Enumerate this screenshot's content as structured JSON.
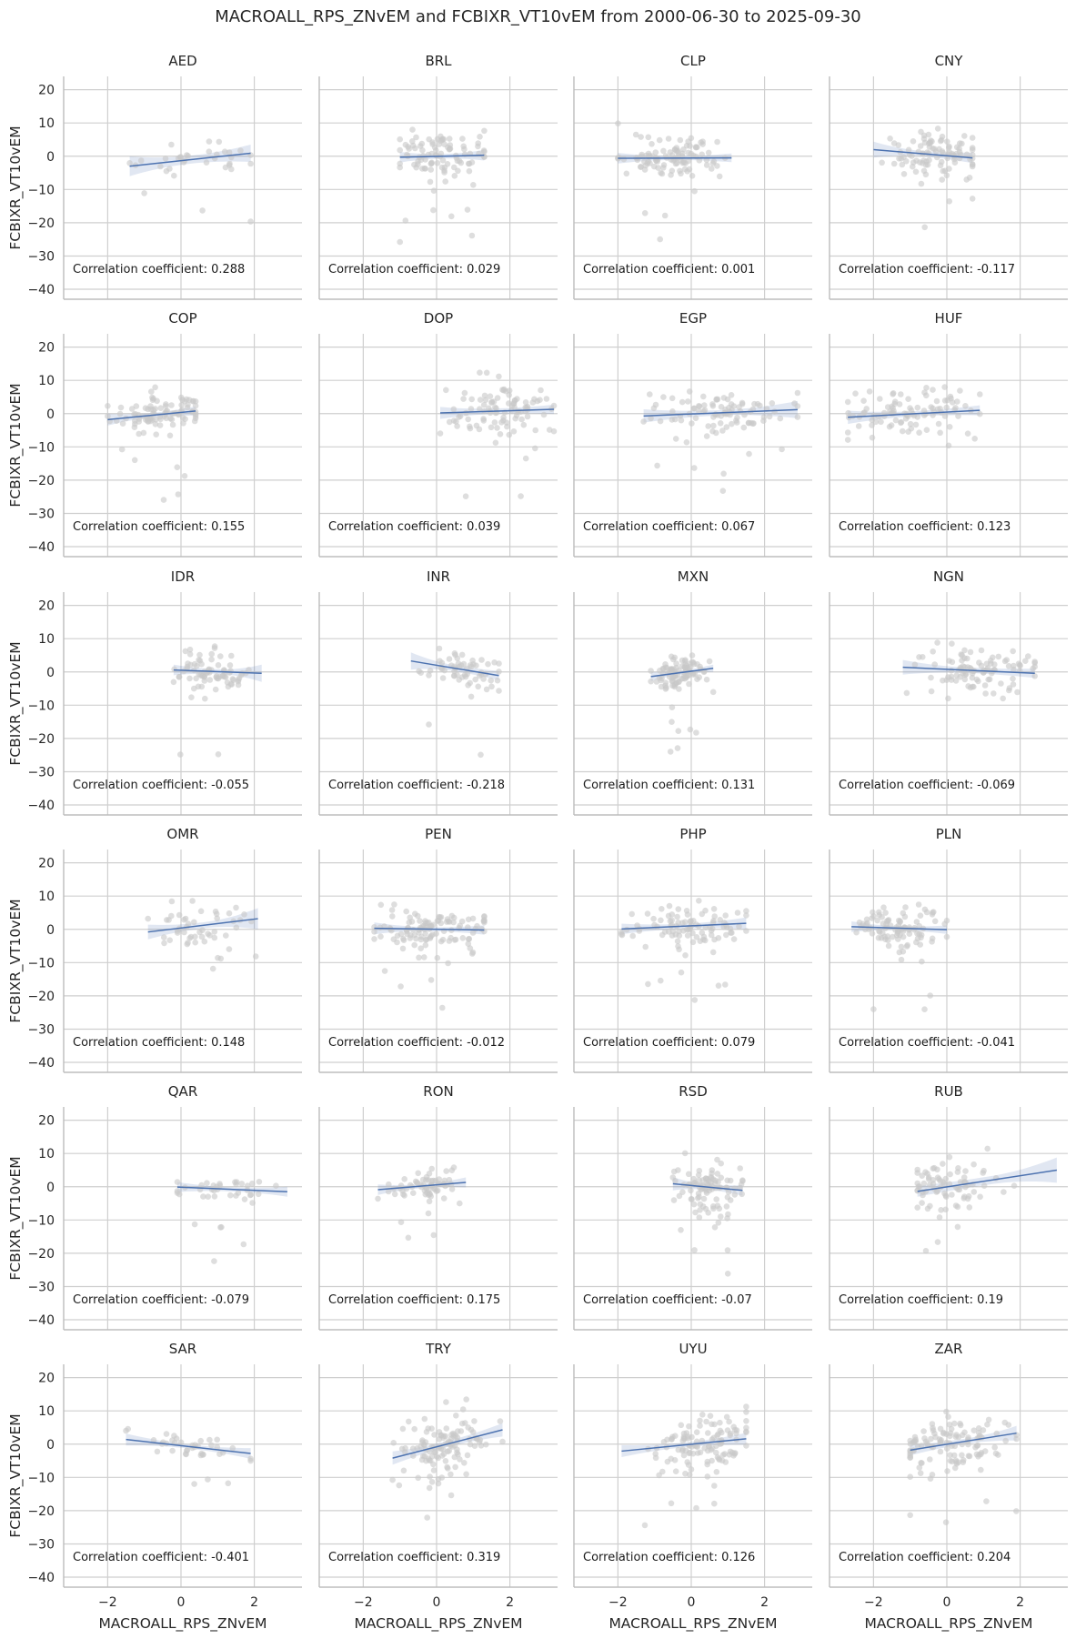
{
  "chart_data": {
    "type": "scatter",
    "title": "MACROALL_RPS_ZNvEM and FCBIXR_VT10vEM from 2000-06-30 to 2025-09-30",
    "xlabel": "MACROALL_RPS_ZNvEM",
    "ylabel": "FCBIXR_VT10vEM",
    "xlim": [
      -3.2,
      3.3
    ],
    "ylim": [
      -43,
      24
    ],
    "xticks": [
      "−2",
      "0",
      "2"
    ],
    "xtick_values": [
      -2,
      0,
      2
    ],
    "yticks": [
      "20",
      "10",
      "0",
      "−10",
      "−20",
      "−30",
      "−40"
    ],
    "ytick_values": [
      20,
      10,
      0,
      -10,
      -20,
      -30,
      -40
    ],
    "grid": true,
    "annotation_prefix": "Correlation coefficient:",
    "scatter_color": "#c8c8c8",
    "line_color": "#4c72b0",
    "panels": [
      {
        "name": "AED",
        "corr": "0.288",
        "x_range": [
          -1.4,
          1.9
        ],
        "line_y": [
          -3.0,
          0.9
        ],
        "ci": [
          3.0,
          1.2,
          2.6
        ],
        "cluster": {
          "x_center": 0.3,
          "x_sd": 0.9,
          "y_sd": 3.5,
          "n": 35
        }
      },
      {
        "name": "BRL",
        "corr": "0.029",
        "x_range": [
          -1.0,
          1.3
        ],
        "line_y": [
          -0.3,
          0.3
        ],
        "ci": [
          1.6,
          0.7,
          1.6
        ],
        "cluster": {
          "x_center": 0.1,
          "x_sd": 0.6,
          "y_sd": 4.8,
          "n": 100
        }
      },
      {
        "name": "CLP",
        "corr": "0.001",
        "x_range": [
          -2.0,
          1.1
        ],
        "line_y": [
          -0.6,
          -0.5
        ],
        "ci": [
          1.6,
          0.6,
          1.3
        ],
        "cluster": {
          "x_center": -0.5,
          "x_sd": 0.8,
          "y_sd": 3.8,
          "n": 110
        }
      },
      {
        "name": "CNY",
        "corr": "-0.117",
        "x_range": [
          -2.0,
          0.7
        ],
        "line_y": [
          2.0,
          -0.5
        ],
        "ci": [
          2.4,
          0.8,
          1.6
        ],
        "cluster": {
          "x_center": -0.2,
          "x_sd": 0.7,
          "y_sd": 4.6,
          "n": 100
        }
      },
      {
        "name": "COP",
        "corr": "0.155",
        "x_range": [
          -2.0,
          0.4
        ],
        "line_y": [
          -1.8,
          0.8
        ],
        "ci": [
          1.8,
          0.7,
          1.4
        ],
        "cluster": {
          "x_center": -0.6,
          "x_sd": 0.6,
          "y_sd": 4.0,
          "n": 100
        }
      },
      {
        "name": "DOP",
        "corr": "0.039",
        "x_range": [
          0.1,
          3.2
        ],
        "line_y": [
          0.2,
          1.3
        ],
        "ci": [
          1.8,
          0.8,
          1.4
        ],
        "cluster": {
          "x_center": 1.7,
          "x_sd": 0.8,
          "y_sd": 5.5,
          "n": 100
        }
      },
      {
        "name": "EGP",
        "corr": "0.067",
        "x_range": [
          -1.3,
          2.9
        ],
        "line_y": [
          -0.7,
          1.2
        ],
        "ci": [
          2.0,
          0.8,
          2.6
        ],
        "cluster": {
          "x_center": 0.9,
          "x_sd": 1.1,
          "y_sd": 5.0,
          "n": 100
        }
      },
      {
        "name": "HUF",
        "corr": "0.123",
        "x_range": [
          -2.7,
          0.9
        ],
        "line_y": [
          -1.1,
          1.0
        ],
        "ci": [
          2.0,
          0.8,
          1.5
        ],
        "cluster": {
          "x_center": -1.0,
          "x_sd": 0.9,
          "y_sd": 5.0,
          "n": 100
        }
      },
      {
        "name": "IDR",
        "corr": "-0.055",
        "x_range": [
          -0.2,
          2.2
        ],
        "line_y": [
          0.6,
          -0.4
        ],
        "ci": [
          1.6,
          0.7,
          2.6
        ],
        "cluster": {
          "x_center": 0.8,
          "x_sd": 0.6,
          "y_sd": 4.0,
          "n": 80
        }
      },
      {
        "name": "INR",
        "corr": "-0.218",
        "x_range": [
          -0.7,
          1.7
        ],
        "line_y": [
          3.3,
          -1.1
        ],
        "ci": [
          2.6,
          0.9,
          1.4
        ],
        "cluster": {
          "x_center": 0.8,
          "x_sd": 0.5,
          "y_sd": 4.2,
          "n": 60
        }
      },
      {
        "name": "MXN",
        "corr": "0.131",
        "x_range": [
          -1.1,
          0.6
        ],
        "line_y": [
          -1.4,
          1.1
        ],
        "ci": [
          1.4,
          0.6,
          1.1
        ],
        "cluster": {
          "x_center": -0.3,
          "x_sd": 0.4,
          "y_sd": 3.5,
          "n": 100
        }
      },
      {
        "name": "NGN",
        "corr": "-0.069",
        "x_range": [
          -1.2,
          2.4
        ],
        "line_y": [
          1.4,
          -0.4
        ],
        "ci": [
          2.2,
          0.8,
          1.4
        ],
        "cluster": {
          "x_center": 1.0,
          "x_sd": 0.8,
          "y_sd": 5.0,
          "n": 100
        }
      },
      {
        "name": "OMR",
        "corr": "0.148",
        "x_range": [
          -0.9,
          2.1
        ],
        "line_y": [
          -0.8,
          3.2
        ],
        "ci": [
          2.2,
          0.9,
          3.2
        ],
        "cluster": {
          "x_center": 0.6,
          "x_sd": 0.7,
          "y_sd": 5.5,
          "n": 50
        }
      },
      {
        "name": "PEN",
        "corr": "-0.012",
        "x_range": [
          -1.7,
          1.3
        ],
        "line_y": [
          0.3,
          -0.2
        ],
        "ci": [
          1.8,
          0.6,
          1.4
        ],
        "cluster": {
          "x_center": -0.2,
          "x_sd": 0.8,
          "y_sd": 4.6,
          "n": 120
        }
      },
      {
        "name": "PHP",
        "corr": "0.079",
        "x_range": [
          -1.9,
          1.5
        ],
        "line_y": [
          0.1,
          1.8
        ],
        "ci": [
          1.6,
          0.7,
          1.8
        ],
        "cluster": {
          "x_center": 0.0,
          "x_sd": 0.8,
          "y_sd": 4.6,
          "n": 100
        }
      },
      {
        "name": "PLN",
        "corr": "-0.041",
        "x_range": [
          -2.6,
          0.0
        ],
        "line_y": [
          0.8,
          -0.1
        ],
        "ci": [
          1.6,
          0.6,
          1.3
        ],
        "cluster": {
          "x_center": -1.3,
          "x_sd": 0.6,
          "y_sd": 4.4,
          "n": 100
        }
      },
      {
        "name": "QAR",
        "corr": "-0.079",
        "x_range": [
          -0.1,
          2.9
        ],
        "line_y": [
          -0.1,
          -1.5
        ],
        "ci": [
          1.5,
          0.6,
          1.5
        ],
        "cluster": {
          "x_center": 1.2,
          "x_sd": 0.8,
          "y_sd": 2.5,
          "n": 40
        }
      },
      {
        "name": "RON",
        "corr": "0.175",
        "x_range": [
          -1.6,
          0.8
        ],
        "line_y": [
          -0.9,
          1.3
        ],
        "ci": [
          1.6,
          0.6,
          1.5
        ],
        "cluster": {
          "x_center": -0.3,
          "x_sd": 0.5,
          "y_sd": 3.0,
          "n": 70
        }
      },
      {
        "name": "RSD",
        "corr": "-0.07",
        "x_range": [
          -0.5,
          1.4
        ],
        "line_y": [
          0.9,
          -1.1
        ],
        "ci": [
          2.0,
          0.8,
          1.6
        ],
        "cluster": {
          "x_center": 0.5,
          "x_sd": 0.5,
          "y_sd": 5.5,
          "n": 100
        }
      },
      {
        "name": "RUB",
        "corr": "0.19",
        "x_range": [
          -0.8,
          3.0
        ],
        "line_y": [
          -1.4,
          5.0
        ],
        "ci": [
          1.6,
          1.2,
          3.8
        ],
        "cluster": {
          "x_center": 0.1,
          "x_sd": 0.6,
          "y_sd": 5.5,
          "n": 80
        }
      },
      {
        "name": "SAR",
        "corr": "-0.401",
        "x_range": [
          -1.5,
          1.9
        ],
        "line_y": [
          1.4,
          -2.8
        ],
        "ci": [
          1.8,
          0.6,
          1.6
        ],
        "cluster": {
          "x_center": 0.2,
          "x_sd": 0.8,
          "y_sd": 2.6,
          "n": 40
        }
      },
      {
        "name": "TRY",
        "corr": "0.319",
        "x_range": [
          -1.2,
          1.8
        ],
        "line_y": [
          -4.2,
          4.3
        ],
        "ci": [
          2.0,
          0.9,
          2.0
        ],
        "cluster": {
          "x_center": 0.3,
          "x_sd": 0.7,
          "y_sd": 6.0,
          "n": 120
        }
      },
      {
        "name": "UYU",
        "corr": "0.126",
        "x_range": [
          -1.9,
          1.5
        ],
        "line_y": [
          -2.1,
          1.6
        ],
        "ci": [
          1.8,
          0.7,
          1.8
        ],
        "cluster": {
          "x_center": 0.3,
          "x_sd": 0.8,
          "y_sd": 5.5,
          "n": 120
        }
      },
      {
        "name": "ZAR",
        "corr": "0.204",
        "x_range": [
          -1.0,
          1.9
        ],
        "line_y": [
          -1.8,
          3.3
        ],
        "ci": [
          1.6,
          0.8,
          2.2
        ],
        "cluster": {
          "x_center": 0.1,
          "x_sd": 0.7,
          "y_sd": 5.0,
          "n": 120
        }
      }
    ]
  }
}
